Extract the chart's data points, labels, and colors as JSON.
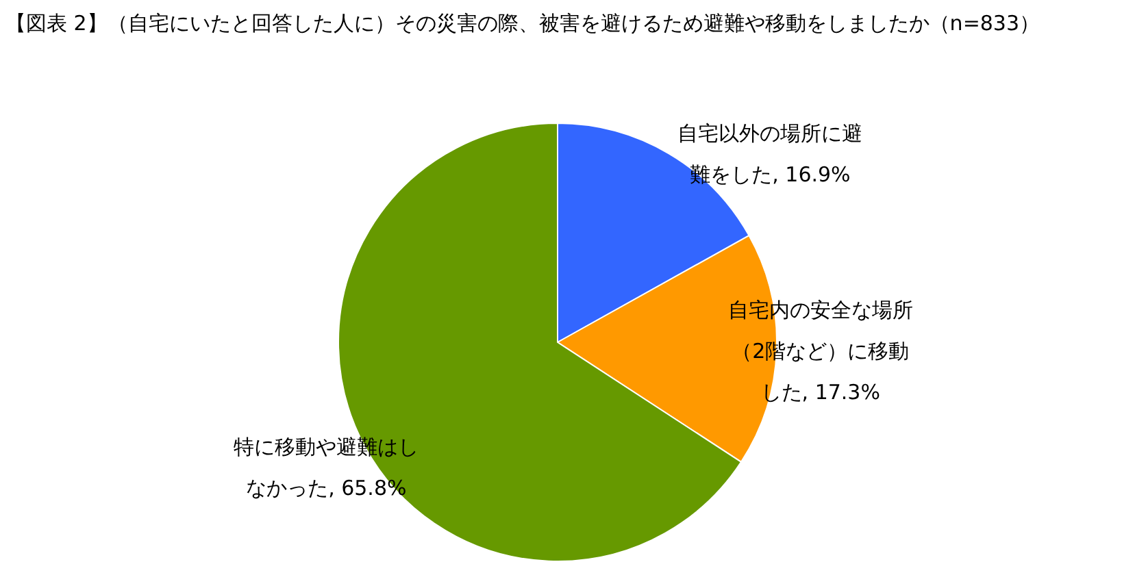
{
  "chart_data": {
    "type": "pie",
    "title": "【図表 2】（自宅にいたと回答した人に）その災害の際、被害を避けるため避難や移動をしましたか（n=833）",
    "categories": [
      "自宅以外の場所に避難をした",
      "自宅内の安全な場所（2階など）に移動した",
      "特に移動や避難はしなかった"
    ],
    "values": [
      16.9,
      17.3,
      65.8
    ],
    "value_labels": [
      ", 16.9%",
      ", 17.3%",
      ", 65.8%"
    ],
    "colors": [
      "#3366ff",
      "#ff9900",
      "#669900"
    ]
  }
}
